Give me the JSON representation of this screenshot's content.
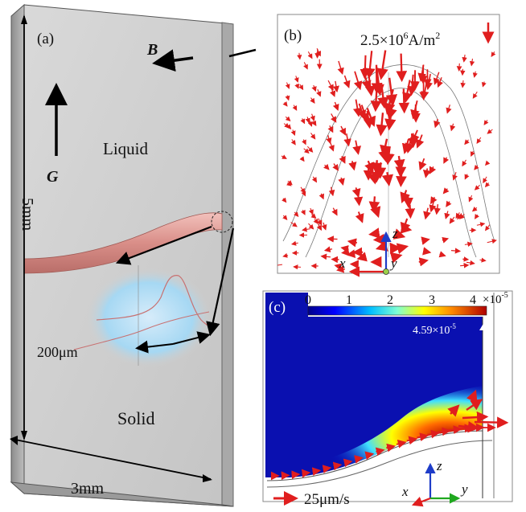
{
  "panel_a": {
    "label": "(a)",
    "field_B": "B",
    "gravity_G": "G",
    "region_top": "Liquid",
    "region_bottom": "Solid",
    "height_dim": "5mm",
    "width_dim": "3mm",
    "scale_dim": "200μm"
  },
  "panel_b": {
    "label": "(b)",
    "scale_text": "2.5×10",
    "scale_exp": "6",
    "scale_unit": "A/m",
    "scale_unit_exp": "2",
    "axis_z": "z",
    "axis_x": "x",
    "axis_y": "y",
    "arrow_color": "#e01e1e"
  },
  "panel_c": {
    "label": "(c)",
    "colorbar_ticks": [
      "0",
      "1",
      "2",
      "3",
      "4"
    ],
    "colorbar_mult": "×10",
    "colorbar_mult_exp": "-5",
    "max_value": "4.59×10",
    "max_value_exp": "-5",
    "velocity_scale": "25μm/s",
    "axis_z": "z",
    "axis_x": "x",
    "axis_y": "y"
  }
}
